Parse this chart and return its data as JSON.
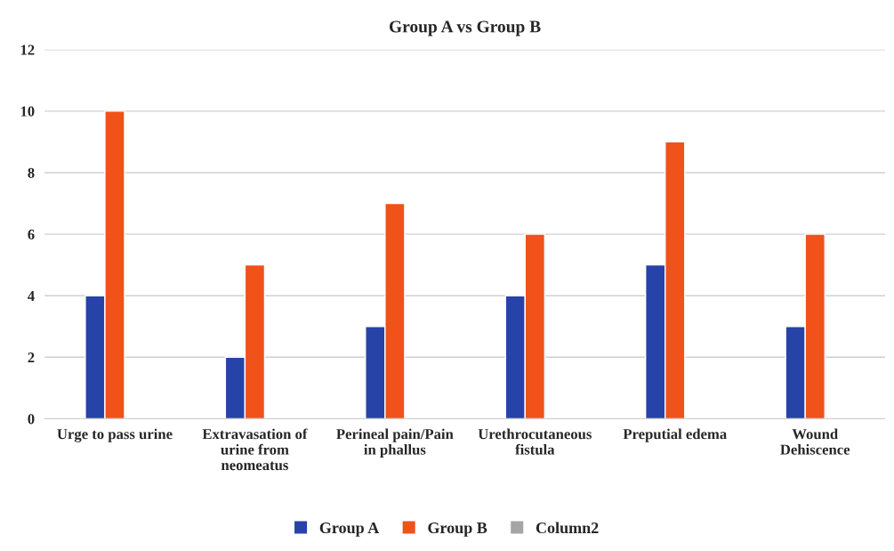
{
  "chart_data": {
    "type": "bar",
    "title": "Group A vs Group B",
    "categories": [
      "Urge to pass urine",
      "Extravasation of\nurine from\nneomeatus",
      "Perineal pain/Pain\nin phallus",
      "Urethrocutaneous\nfistula",
      "Preputial edema",
      "Wound\nDehiscence"
    ],
    "series": [
      {
        "name": "Group A",
        "color": "#2743a8",
        "values": [
          4,
          2,
          3,
          4,
          5,
          3
        ]
      },
      {
        "name": "Group B",
        "color": "#f0521a",
        "values": [
          10,
          5,
          7,
          6,
          9,
          6
        ]
      },
      {
        "name": "Column2",
        "color": "#a5a5a5",
        "values": [
          null,
          null,
          null,
          null,
          null,
          null
        ]
      }
    ],
    "ylim": [
      0,
      12
    ],
    "yticks": [
      0,
      2,
      4,
      6,
      8,
      10,
      12
    ],
    "grid": "y",
    "legend": "bottom"
  }
}
